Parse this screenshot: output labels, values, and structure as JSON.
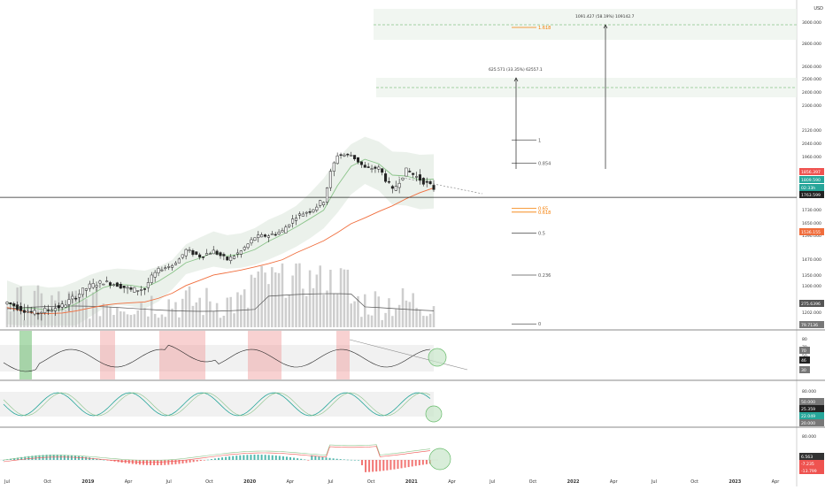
{
  "colors": {
    "up": "#26a69a",
    "down": "#ef5350",
    "wick": "#222222",
    "ema_short": "#8bc48a",
    "ema_long": "#f06d3c",
    "band": "#e9efe9",
    "volume": "#bdbdbd",
    "volume_ma": "#555555",
    "fib": "#555555",
    "fib_gold": "#f57c00",
    "grid": "#e6e6e6"
  },
  "price_axis": {
    "unit": "USD",
    "ticks": [
      "3000.000",
      "2800.000",
      "2600.000",
      "2500.000",
      "2400.000",
      "2300.000",
      "2120.000",
      "2040.000",
      "1960.000",
      "1880.000",
      "1730.000",
      "1650.000",
      "1590.000",
      "1470.000",
      "1350.000",
      "1300.000",
      "1202.000"
    ],
    "badges": [
      {
        "text": "1856.397",
        "color": "#ef5350"
      },
      {
        "text": "1809.590",
        "color": "#26a69a"
      },
      {
        "text": "02:33h",
        "color": "#26a69a"
      },
      {
        "text": "1763.599",
        "color": "#222222"
      },
      {
        "text": "1536.155",
        "color": "#f06d3c"
      },
      {
        "text": "275.6396",
        "color": "#555555"
      },
      {
        "text": "79.7136",
        "color": "#777777"
      }
    ]
  },
  "x_axis": {
    "ticks": [
      "Jul",
      "Oct",
      "2019",
      "Apr",
      "Jul",
      "Oct",
      "2020",
      "Apr",
      "Jul",
      "Oct",
      "2021",
      "Apr",
      "Jul",
      "Oct",
      "2022",
      "Apr",
      "Jul",
      "Oct",
      "2023",
      "Apr"
    ]
  },
  "fib_levels": [
    {
      "label": "1.618",
      "gold": true
    },
    {
      "label": "1",
      "gold": false
    },
    {
      "label": "0.854",
      "gold": false
    },
    {
      "label": "0.65",
      "gold": true
    },
    {
      "label": "0.618",
      "gold": true
    },
    {
      "label": "0.5",
      "gold": false
    },
    {
      "label": "0.236",
      "gold": false
    },
    {
      "label": "0",
      "gold": false
    }
  ],
  "measures": [
    {
      "label": "625.571 (33.35%) 62557.1"
    },
    {
      "label": "1091.427 (58.19%) 109142.7"
    }
  ],
  "rsi": {
    "ticks": [
      "80",
      "70",
      "50",
      "30"
    ],
    "badges": [
      "70",
      "46",
      "30"
    ]
  },
  "stoch": {
    "ticks": [
      "80.000"
    ],
    "badges": [
      "50.000",
      "25.359",
      "22.049",
      "20.000"
    ]
  },
  "macd": {
    "ticks": [
      "80.000"
    ],
    "badges": [
      "6.563",
      "-7.235",
      "-13.799"
    ]
  },
  "chart_data": {
    "type": "line",
    "title": "",
    "symbol_unit": "USD",
    "x": [
      "2018-07",
      "2018-08",
      "2018-09",
      "2018-10",
      "2018-11",
      "2018-12",
      "2019-01",
      "2019-02",
      "2019-03",
      "2019-04",
      "2019-05",
      "2019-06",
      "2019-07",
      "2019-08",
      "2019-09",
      "2019-10",
      "2019-11",
      "2019-12",
      "2020-01",
      "2020-02",
      "2020-03",
      "2020-04",
      "2020-05",
      "2020-06",
      "2020-07",
      "2020-08",
      "2020-09",
      "2020-10",
      "2020-11",
      "2020-12",
      "2021-01",
      "2021-02"
    ],
    "series": [
      {
        "values": [
          1238,
          1215,
          1198,
          1212,
          1225,
          1262,
          1300,
          1318,
          1305,
          1283,
          1290,
          1390,
          1425,
          1515,
          1485,
          1510,
          1465,
          1510,
          1580,
          1590,
          1610,
          1690,
          1725,
          1765,
          1970,
          1970,
          1890,
          1890,
          1800,
          1880,
          1845,
          1810
        ]
      }
    ],
    "ylim": [
      1160,
      3100
    ],
    "fib_levels": [
      {
        "label": "1.618",
        "price": 2950
      },
      {
        "label": "1",
        "price": 2060
      },
      {
        "label": "0.854",
        "price": 1920
      },
      {
        "label": "0.65",
        "price": 1735
      },
      {
        "label": "0.618",
        "price": 1715
      },
      {
        "label": "0.5",
        "price": 1600
      },
      {
        "label": "0.236",
        "price": 1350
      },
      {
        "label": "0",
        "price": 1165
      }
    ],
    "current_price": 1809.59
  }
}
